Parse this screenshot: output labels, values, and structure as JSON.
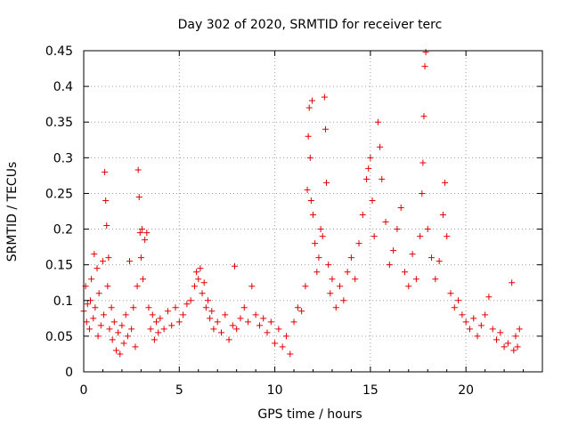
{
  "chart_data": {
    "type": "scatter",
    "title": "Day 302 of 2020, SRMTID for receiver terc",
    "xlabel": "GPS time / hours",
    "ylabel": "SRMTID / TECUs",
    "xlim": [
      0,
      24
    ],
    "ylim": [
      0,
      0.45
    ],
    "x_ticks": [
      0,
      5,
      10,
      15,
      20
    ],
    "x_tick_labels": [
      "0",
      "5",
      "10",
      "15",
      "20"
    ],
    "y_ticks": [
      0,
      0.05,
      0.1,
      0.15,
      0.2,
      0.25,
      0.3,
      0.35,
      0.4,
      0.45
    ],
    "y_tick_labels": [
      "0",
      "0.05",
      "0.1",
      "0.15",
      "0.2",
      "0.25",
      "0.3",
      "0.35",
      "0.4",
      "0.45"
    ],
    "grid": true,
    "marker": "+",
    "series_color": "#e00000",
    "series": [
      {
        "name": "SRMTID",
        "points": [
          [
            0.0,
            0.085
          ],
          [
            0.1,
            0.12
          ],
          [
            0.15,
            0.07
          ],
          [
            0.2,
            0.095
          ],
          [
            0.3,
            0.06
          ],
          [
            0.35,
            0.1
          ],
          [
            0.4,
            0.13
          ],
          [
            0.5,
            0.075
          ],
          [
            0.55,
            0.165
          ],
          [
            0.6,
            0.09
          ],
          [
            0.7,
            0.145
          ],
          [
            0.75,
            0.05
          ],
          [
            0.8,
            0.11
          ],
          [
            0.9,
            0.065
          ],
          [
            1.0,
            0.155
          ],
          [
            1.05,
            0.08
          ],
          [
            1.1,
            0.28
          ],
          [
            1.15,
            0.24
          ],
          [
            1.2,
            0.205
          ],
          [
            1.25,
            0.12
          ],
          [
            1.3,
            0.16
          ],
          [
            1.35,
            0.06
          ],
          [
            1.45,
            0.09
          ],
          [
            1.5,
            0.045
          ],
          [
            1.6,
            0.07
          ],
          [
            1.7,
            0.03
          ],
          [
            1.8,
            0.055
          ],
          [
            1.9,
            0.025
          ],
          [
            2.0,
            0.065
          ],
          [
            2.1,
            0.04
          ],
          [
            2.2,
            0.08
          ],
          [
            2.3,
            0.05
          ],
          [
            2.4,
            0.155
          ],
          [
            2.5,
            0.06
          ],
          [
            2.6,
            0.09
          ],
          [
            2.7,
            0.035
          ],
          [
            2.8,
            0.12
          ],
          [
            2.85,
            0.283
          ],
          [
            2.9,
            0.245
          ],
          [
            2.95,
            0.195
          ],
          [
            3.0,
            0.16
          ],
          [
            3.05,
            0.2
          ],
          [
            3.1,
            0.13
          ],
          [
            3.2,
            0.185
          ],
          [
            3.3,
            0.195
          ],
          [
            3.4,
            0.09
          ],
          [
            3.5,
            0.06
          ],
          [
            3.6,
            0.08
          ],
          [
            3.7,
            0.045
          ],
          [
            3.8,
            0.07
          ],
          [
            3.9,
            0.055
          ],
          [
            4.0,
            0.075
          ],
          [
            4.2,
            0.06
          ],
          [
            4.4,
            0.085
          ],
          [
            4.6,
            0.065
          ],
          [
            4.8,
            0.09
          ],
          [
            5.0,
            0.07
          ],
          [
            5.2,
            0.08
          ],
          [
            5.4,
            0.095
          ],
          [
            5.6,
            0.1
          ],
          [
            5.8,
            0.12
          ],
          [
            5.9,
            0.14
          ],
          [
            6.0,
            0.13
          ],
          [
            6.1,
            0.145
          ],
          [
            6.2,
            0.11
          ],
          [
            6.3,
            0.125
          ],
          [
            6.4,
            0.09
          ],
          [
            6.5,
            0.1
          ],
          [
            6.6,
            0.075
          ],
          [
            6.7,
            0.085
          ],
          [
            6.8,
            0.06
          ],
          [
            7.0,
            0.07
          ],
          [
            7.2,
            0.055
          ],
          [
            7.4,
            0.08
          ],
          [
            7.6,
            0.045
          ],
          [
            7.8,
            0.065
          ],
          [
            7.9,
            0.148
          ],
          [
            8.0,
            0.06
          ],
          [
            8.2,
            0.075
          ],
          [
            8.4,
            0.09
          ],
          [
            8.6,
            0.07
          ],
          [
            8.8,
            0.12
          ],
          [
            9.0,
            0.08
          ],
          [
            9.2,
            0.065
          ],
          [
            9.4,
            0.075
          ],
          [
            9.6,
            0.055
          ],
          [
            9.8,
            0.07
          ],
          [
            10.0,
            0.04
          ],
          [
            10.2,
            0.06
          ],
          [
            10.4,
            0.035
          ],
          [
            10.6,
            0.05
          ],
          [
            10.8,
            0.025
          ],
          [
            11.0,
            0.07
          ],
          [
            11.2,
            0.09
          ],
          [
            11.4,
            0.085
          ],
          [
            11.6,
            0.12
          ],
          [
            11.7,
            0.255
          ],
          [
            11.75,
            0.33
          ],
          [
            11.8,
            0.37
          ],
          [
            11.85,
            0.3
          ],
          [
            11.9,
            0.24
          ],
          [
            11.95,
            0.38
          ],
          [
            12.0,
            0.22
          ],
          [
            12.1,
            0.18
          ],
          [
            12.2,
            0.14
          ],
          [
            12.3,
            0.16
          ],
          [
            12.4,
            0.2
          ],
          [
            12.5,
            0.19
          ],
          [
            12.6,
            0.385
          ],
          [
            12.65,
            0.34
          ],
          [
            12.7,
            0.265
          ],
          [
            12.8,
            0.15
          ],
          [
            12.9,
            0.11
          ],
          [
            13.0,
            0.13
          ],
          [
            13.2,
            0.09
          ],
          [
            13.4,
            0.12
          ],
          [
            13.6,
            0.1
          ],
          [
            13.8,
            0.14
          ],
          [
            14.0,
            0.16
          ],
          [
            14.2,
            0.13
          ],
          [
            14.4,
            0.18
          ],
          [
            14.6,
            0.22
          ],
          [
            14.8,
            0.27
          ],
          [
            14.9,
            0.285
          ],
          [
            15.0,
            0.3
          ],
          [
            15.1,
            0.24
          ],
          [
            15.2,
            0.19
          ],
          [
            15.4,
            0.35
          ],
          [
            15.5,
            0.315
          ],
          [
            15.6,
            0.27
          ],
          [
            15.8,
            0.21
          ],
          [
            16.0,
            0.15
          ],
          [
            16.2,
            0.17
          ],
          [
            16.4,
            0.2
          ],
          [
            16.6,
            0.23
          ],
          [
            16.8,
            0.14
          ],
          [
            17.0,
            0.12
          ],
          [
            17.2,
            0.165
          ],
          [
            17.4,
            0.13
          ],
          [
            17.6,
            0.19
          ],
          [
            17.7,
            0.25
          ],
          [
            17.75,
            0.293
          ],
          [
            17.8,
            0.358
          ],
          [
            17.85,
            0.428
          ],
          [
            17.9,
            0.448
          ],
          [
            18.0,
            0.2
          ],
          [
            18.2,
            0.16
          ],
          [
            18.4,
            0.13
          ],
          [
            18.6,
            0.155
          ],
          [
            18.8,
            0.22
          ],
          [
            18.9,
            0.265
          ],
          [
            19.0,
            0.19
          ],
          [
            19.2,
            0.11
          ],
          [
            19.4,
            0.09
          ],
          [
            19.6,
            0.1
          ],
          [
            19.8,
            0.08
          ],
          [
            20.0,
            0.07
          ],
          [
            20.2,
            0.06
          ],
          [
            20.4,
            0.075
          ],
          [
            20.6,
            0.05
          ],
          [
            20.8,
            0.065
          ],
          [
            21.0,
            0.08
          ],
          [
            21.2,
            0.105
          ],
          [
            21.4,
            0.06
          ],
          [
            21.6,
            0.045
          ],
          [
            21.8,
            0.055
          ],
          [
            22.0,
            0.035
          ],
          [
            22.2,
            0.04
          ],
          [
            22.4,
            0.125
          ],
          [
            22.5,
            0.03
          ],
          [
            22.6,
            0.05
          ],
          [
            22.7,
            0.035
          ],
          [
            22.8,
            0.06
          ]
        ]
      }
    ]
  }
}
